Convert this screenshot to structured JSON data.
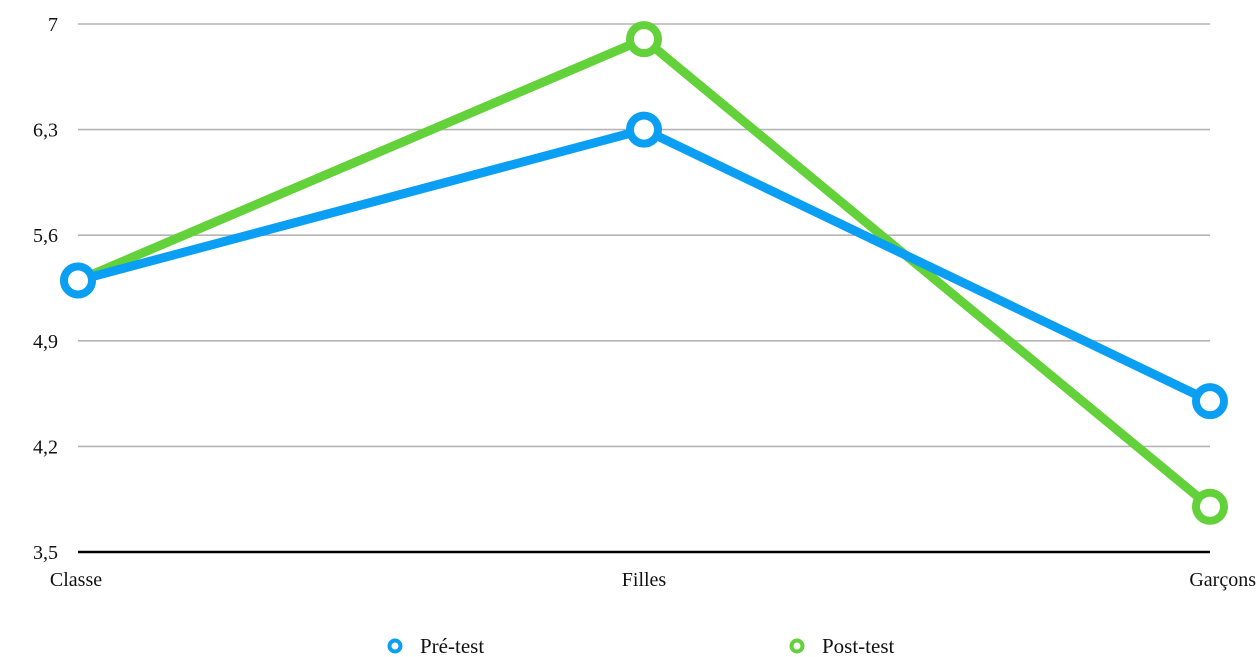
{
  "chart_data": {
    "type": "line",
    "title": "",
    "xlabel": "",
    "ylabel": "",
    "categories": [
      "Classe",
      "Filles",
      "Garçons"
    ],
    "ylim": [
      3.5,
      7
    ],
    "yticks": [
      "3,5",
      "4,2",
      "4,9",
      "5,6",
      "6,3",
      "7"
    ],
    "ytick_values": [
      3.5,
      4.2,
      4.9,
      5.6,
      6.3,
      7
    ],
    "grid": true,
    "legend_position": "bottom",
    "series": [
      {
        "name": "Pré-test",
        "values": [
          5.3,
          6.3,
          4.5
        ],
        "color": "#0a9ff3"
      },
      {
        "name": "Post-test",
        "values": [
          5.3,
          6.9,
          3.8
        ],
        "color": "#63d139"
      }
    ]
  }
}
